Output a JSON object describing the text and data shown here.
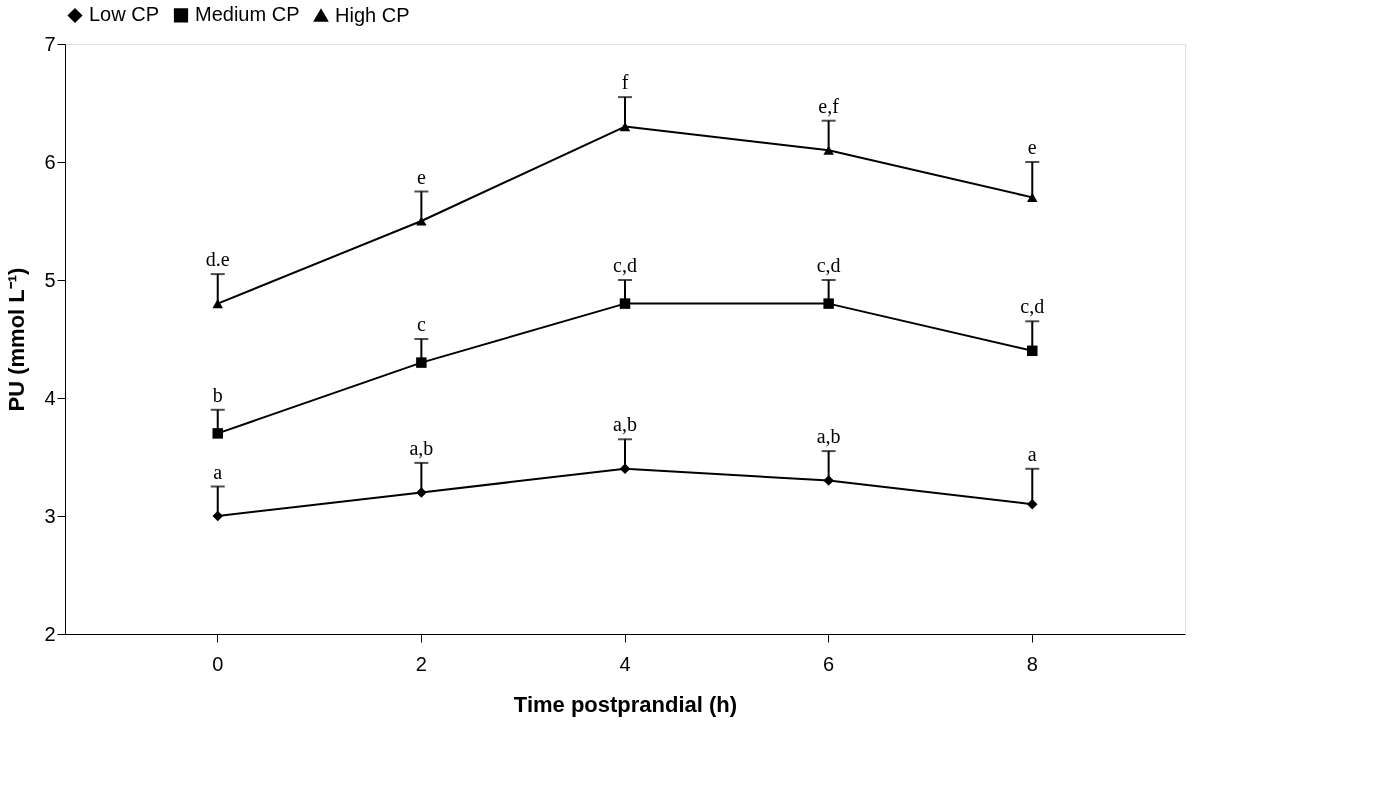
{
  "chart_data": {
    "type": "line",
    "xlabel": "Time postprandial (h)",
    "ylabel": "PU (mmol L⁻¹)",
    "categories": [
      "0",
      "2",
      "4",
      "6",
      "8"
    ],
    "series": [
      {
        "name": "Low CP",
        "color": "#000000",
        "marker": "diamond",
        "values": [
          3.0,
          3.2,
          3.4,
          3.3,
          3.1
        ],
        "errors": [
          [
            3.0,
            3.25
          ],
          [
            3.2,
            3.45
          ],
          [
            3.4,
            3.65
          ],
          [
            3.3,
            3.55
          ],
          [
            3.1,
            3.4
          ]
        ]
      },
      {
        "name": "Medium CP",
        "color": "#000000",
        "marker": "square",
        "values": [
          3.7,
          4.3,
          4.8,
          4.8,
          4.4
        ],
        "errors": [
          [
            3.7,
            3.9
          ],
          [
            4.3,
            4.5
          ],
          [
            4.8,
            5.0
          ],
          [
            4.8,
            5.0
          ],
          [
            4.4,
            4.65
          ]
        ]
      },
      {
        "name": "High CP",
        "color": "#000000",
        "marker": "triangle",
        "values": [
          4.8,
          5.5,
          6.3,
          6.1,
          5.7
        ],
        "errors": [
          [
            4.8,
            5.05
          ],
          [
            5.5,
            5.75
          ],
          [
            6.3,
            6.55
          ],
          [
            6.1,
            6.35
          ],
          [
            5.7,
            6.0
          ]
        ]
      }
    ],
    "annotations": [
      {
        "text": "a",
        "x": "0",
        "y": 3.25
      },
      {
        "text": "a,b",
        "x": "2",
        "y": 3.45
      },
      {
        "text": "a,b",
        "x": "4",
        "y": 3.65
      },
      {
        "text": "a,b",
        "x": "6",
        "y": 3.55
      },
      {
        "text": "a",
        "x": "8",
        "y": 3.4
      },
      {
        "text": "b",
        "x": "0",
        "y": 3.9
      },
      {
        "text": "c",
        "x": "2",
        "y": 4.5
      },
      {
        "text": "c,d",
        "x": "4",
        "y": 5.0
      },
      {
        "text": "c,d",
        "x": "6",
        "y": 5.0
      },
      {
        "text": "c,d",
        "x": "8",
        "y": 4.65
      },
      {
        "text": "d.e",
        "x": "0",
        "y": 5.05
      },
      {
        "text": "e",
        "x": "2",
        "y": 5.75
      },
      {
        "text": "f",
        "x": "4",
        "y": 6.55
      },
      {
        "text": "e,f",
        "x": "6",
        "y": 6.35
      },
      {
        "text": "e",
        "x": "8",
        "y": 6.0
      }
    ],
    "ylim": [
      2,
      7
    ],
    "yticks": [
      2,
      3,
      4,
      5,
      6,
      7
    ],
    "grid": false,
    "legend": "top",
    "line_style": "solid"
  }
}
